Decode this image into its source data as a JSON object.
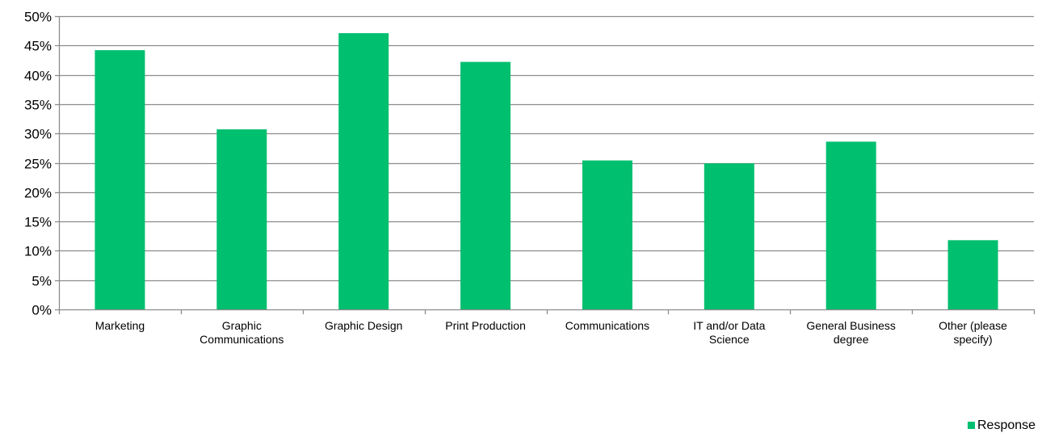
{
  "chart_data": {
    "type": "bar",
    "title": "",
    "xlabel": "",
    "ylabel": "",
    "categories": [
      "Marketing",
      "Graphic Communications",
      "Graphic Design",
      "Print Production",
      "Communications",
      "IT and/or Data Science",
      "General Business degree",
      "Other (please specify)"
    ],
    "category_lines": [
      [
        "Marketing"
      ],
      [
        "Graphic",
        "Communications"
      ],
      [
        "Graphic Design"
      ],
      [
        "Print Production"
      ],
      [
        "Communications"
      ],
      [
        "IT and/or Data",
        "Science"
      ],
      [
        "General Business",
        "degree"
      ],
      [
        "Other (please",
        "specify)"
      ]
    ],
    "series": [
      {
        "name": "Response",
        "color": "#00BF6F",
        "values": [
          0.442,
          0.307,
          0.471,
          0.422,
          0.254,
          0.249,
          0.286,
          0.118
        ]
      }
    ],
    "y_ticks": [
      0,
      0.05,
      0.1,
      0.15,
      0.2,
      0.25,
      0.3,
      0.35,
      0.4,
      0.45,
      0.5
    ],
    "y_tick_labels": [
      "0%",
      "5%",
      "10%",
      "15%",
      "20%",
      "25%",
      "30%",
      "35%",
      "40%",
      "45%",
      "50%"
    ],
    "ylim": [
      0,
      0.5
    ],
    "grid": true,
    "grid_color": "#8C8C8C",
    "legend_position": "bottom-right"
  }
}
